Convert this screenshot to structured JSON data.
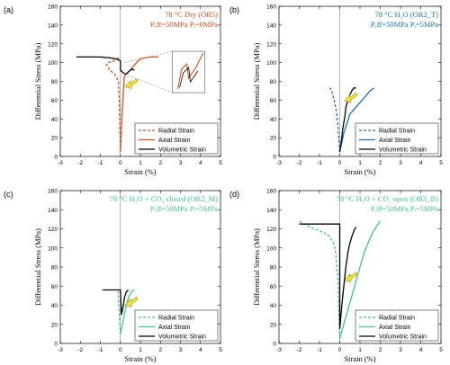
{
  "chart_data": [
    {
      "type": "line",
      "panel_label": "(a)",
      "title_lines": [
        "78 °C Dry   (OR5)",
        "Pₑff=50MPa   Pᵢ=0MPa"
      ],
      "title_color": "#d9501e",
      "xlabel": "Strain (%)",
      "ylabel": "Differential Stress (MPa)",
      "xlim": [
        -3,
        5
      ],
      "ylim": [
        0,
        160
      ],
      "xticks": [
        "-3",
        "-2",
        "-1",
        "0",
        "1",
        "2",
        "3",
        "4",
        "5"
      ],
      "yticks": [
        "0",
        "20",
        "40",
        "60",
        "80",
        "100",
        "120",
        "140",
        "160"
      ],
      "colors": {
        "radial": "#d9501e",
        "axial": "#d9501e",
        "volumetric": "#000000"
      },
      "legend": [
        "Radial Strain",
        "Axial Strain",
        "Volumetric Strain"
      ],
      "legend_position": "bottom-right",
      "inset": true,
      "series": [
        {
          "name": "Radial Strain",
          "style": "dashed",
          "x": [
            0,
            -0.05,
            -0.1,
            -0.2,
            -0.3,
            -0.4,
            -0.55,
            -0.6,
            -0.7,
            -0.6,
            -0.5,
            -0.3,
            -0.25,
            -0.1,
            0
          ],
          "y": [
            5,
            60,
            80,
            85,
            88,
            90,
            92,
            95,
            98,
            100,
            101,
            102,
            103,
            105,
            106
          ]
        },
        {
          "name": "Axial Strain",
          "style": "solid",
          "x": [
            0,
            0.05,
            0.1,
            0.15,
            0.2,
            0.3,
            0.4,
            0.5,
            0.6,
            0.7,
            0.8,
            0.9,
            1.0,
            1.2,
            1.5,
            1.7,
            1.9
          ],
          "y": [
            5,
            30,
            50,
            70,
            85,
            88,
            90,
            92,
            95,
            97,
            100,
            102,
            104,
            105,
            106,
            106,
            106
          ]
        },
        {
          "name": "Volumetric Strain",
          "style": "solid",
          "x": [
            -2.2,
            -1.5,
            -1.0,
            -0.5,
            -0.2,
            0,
            0,
            0.1,
            0.2,
            0.3,
            0.4,
            0.5,
            0.6,
            0.7
          ],
          "y": [
            106,
            106,
            106,
            105,
            104,
            102,
            92,
            90,
            88,
            88,
            90,
            92,
            93,
            92
          ]
        }
      ]
    },
    {
      "type": "line",
      "panel_label": "(b)",
      "title_lines": [
        "78 °C H₂O   (OR2_T)",
        "Pₑff=50MPa   Pᵢ=5MPa"
      ],
      "title_color": "#1a72b8",
      "xlabel": "Strain (%)",
      "ylabel": "Differential Stress (MPa)",
      "xlim": [
        -3,
        5
      ],
      "ylim": [
        0,
        160
      ],
      "xticks": [
        "-3",
        "-2",
        "-1",
        "0",
        "1",
        "2",
        "3",
        "4",
        "5"
      ],
      "yticks": [
        "0",
        "20",
        "40",
        "60",
        "80",
        "100",
        "120",
        "140",
        "160"
      ],
      "colors": {
        "radial": "#1a72b8",
        "axial": "#1a72b8",
        "volumetric": "#000000"
      },
      "legend": [
        "Radial Strain",
        "Axial Strain",
        "Volumetric Strain"
      ],
      "legend_position": "bottom-right",
      "series": [
        {
          "name": "Radial Strain",
          "style": "dashed",
          "x": [
            0,
            -0.05,
            -0.1,
            -0.15,
            -0.2,
            -0.25,
            -0.3,
            -0.35,
            -0.4,
            -0.45,
            -0.5
          ],
          "y": [
            5,
            20,
            35,
            45,
            52,
            57,
            62,
            66,
            70,
            72,
            73
          ]
        },
        {
          "name": "Axial Strain",
          "style": "solid",
          "x": [
            0,
            0.1,
            0.2,
            0.35,
            0.5,
            0.7,
            0.9,
            1.1,
            1.3,
            1.5,
            1.7
          ],
          "y": [
            5,
            15,
            25,
            35,
            45,
            50,
            55,
            60,
            65,
            70,
            73
          ]
        },
        {
          "name": "Volumetric Strain",
          "style": "solid",
          "x": [
            0,
            0.1,
            0.15,
            0.25,
            0.3,
            0.4,
            0.5,
            0.6,
            0.7,
            0.8
          ],
          "y": [
            5,
            20,
            30,
            42,
            52,
            60,
            66,
            70,
            73,
            73
          ]
        }
      ]
    },
    {
      "type": "line",
      "panel_label": "(c)",
      "title_lines": [
        "78 °C H₂O + CO₂ closed (OR2_M)",
        "Pₑff=50MPa   Pᵢ=5MPa"
      ],
      "title_color": "#3cc4a0",
      "xlabel": "Strain (%)",
      "ylabel": "Differential Stress (MPa)",
      "xlim": [
        -3,
        5
      ],
      "ylim": [
        0,
        160
      ],
      "xticks": [
        "-3",
        "-2",
        "-1",
        "0",
        "1",
        "2",
        "3",
        "4",
        "5"
      ],
      "yticks": [
        "0",
        "20",
        "40",
        "60",
        "80",
        "100",
        "120",
        "140",
        "160"
      ],
      "colors": {
        "radial": "#3cc4a0",
        "axial": "#3cc4a0",
        "volumetric": "#000000"
      },
      "legend": [
        "Radial Strain",
        "Axial Strain",
        "Volumetric Strain"
      ],
      "legend_position": "bottom-right",
      "series": [
        {
          "name": "Radial Strain",
          "style": "dashed",
          "x": [
            0,
            -0.05,
            -0.08,
            -0.1,
            -0.12,
            -0.15
          ],
          "y": [
            10,
            30,
            40,
            48,
            54,
            56
          ]
        },
        {
          "name": "Axial Strain",
          "style": "solid",
          "x": [
            0,
            0.1,
            0.2,
            0.3,
            0.4,
            0.5,
            0.6,
            0.7
          ],
          "y": [
            10,
            20,
            30,
            40,
            48,
            52,
            55,
            56
          ]
        },
        {
          "name": "Volumetric Strain",
          "style": "solid",
          "x": [
            -0.9,
            -0.5,
            -0.2,
            0,
            0.05,
            0.1,
            0.15,
            0.2,
            0.3,
            0.4
          ],
          "y": [
            56,
            56,
            56,
            56,
            30,
            35,
            40,
            48,
            54,
            56
          ]
        }
      ]
    },
    {
      "type": "line",
      "panel_label": "(d)",
      "title_lines": [
        "78 °C H₂O + CO₂ open (OR3_B)",
        "Pₑff=50MPa   Pᵢ=5MPa"
      ],
      "title_color": "#3cc4a0",
      "xlabel": "Strain (%)",
      "ylabel": "Differential Stress (MPa)",
      "xlim": [
        -3,
        5
      ],
      "ylim": [
        0,
        160
      ],
      "xticks": [
        "-3",
        "-2",
        "-1",
        "0",
        "1",
        "2",
        "3",
        "4",
        "5"
      ],
      "yticks": [
        "0",
        "20",
        "40",
        "60",
        "80",
        "100",
        "120",
        "140",
        "160"
      ],
      "colors": {
        "radial": "#3cc4a0",
        "axial": "#3cc4a0",
        "volumetric": "#000000"
      },
      "legend": [
        "Radial Strain",
        "Axial Strain",
        "Volumetric Strain"
      ],
      "legend_position": "bottom-right",
      "series": [
        {
          "name": "Radial Strain",
          "style": "dashed",
          "x": [
            0,
            -0.05,
            -0.1,
            -0.2,
            -0.3,
            -0.5,
            -0.7,
            -1.0,
            -1.5,
            -2.0
          ],
          "y": [
            5,
            40,
            70,
            95,
            105,
            112,
            115,
            118,
            122,
            128
          ]
        },
        {
          "name": "Axial Strain",
          "style": "solid",
          "x": [
            0,
            0.2,
            0.4,
            0.6,
            0.8,
            1.0,
            1.2,
            1.4,
            1.6,
            1.8,
            2.0
          ],
          "y": [
            5,
            20,
            35,
            50,
            65,
            80,
            95,
            105,
            115,
            122,
            128
          ]
        },
        {
          "name": "Volumetric Strain",
          "style": "solid",
          "x": [
            -2.0,
            -1.5,
            -1.0,
            -0.5,
            0,
            0,
            0.1,
            0.2,
            0.3,
            0.4,
            0.5,
            0.6,
            0.7,
            0.8
          ],
          "y": [
            125,
            125,
            125,
            125,
            125,
            15,
            40,
            60,
            80,
            95,
            105,
            112,
            118,
            122
          ]
        }
      ]
    }
  ]
}
